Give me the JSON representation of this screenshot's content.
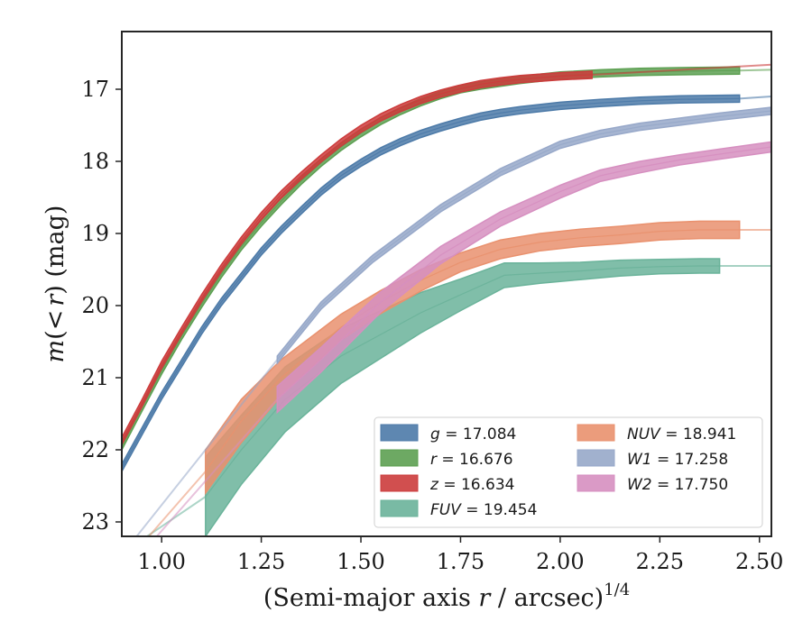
{
  "chart_data": {
    "type": "line",
    "xlabel": "(Semi-major axis r / arcsec)1/4",
    "xlabel_parts": {
      "pre": "(Semi-major axis ",
      "var": "r",
      "mid": " / arcsec)",
      "sup": "1/4"
    },
    "ylabel": "m(< r) (mag)",
    "ylabel_parts": {
      "var": "m",
      "mid": "(<",
      "var2": "r",
      "post": ") (mag)"
    },
    "xlim": [
      0.9,
      2.53
    ],
    "ylim": [
      23.2,
      16.2
    ],
    "y_inverted": true,
    "x_ticks": [
      1.0,
      1.25,
      1.5,
      1.75,
      2.0,
      2.25,
      2.5
    ],
    "x_tick_labels": [
      "1.00",
      "1.25",
      "1.50",
      "1.75",
      "2.00",
      "2.25",
      "2.50"
    ],
    "y_ticks": [
      17,
      18,
      19,
      20,
      21,
      22,
      23
    ],
    "y_tick_labels": [
      "17",
      "18",
      "19",
      "20",
      "21",
      "22",
      "23"
    ],
    "grid": false,
    "legend_position": "lower-right",
    "legend_columns": 2,
    "series": [
      {
        "name": "g = 17.084",
        "legend": {
          "var": "g",
          "value": "17.084"
        },
        "color": "#4c7aa8",
        "x": [
          0.9,
          0.95,
          1.0,
          1.05,
          1.1,
          1.15,
          1.2,
          1.25,
          1.3,
          1.35,
          1.4,
          1.45,
          1.5,
          1.55,
          1.6,
          1.65,
          1.7,
          1.75,
          1.8,
          1.85,
          1.9,
          2.0,
          2.1,
          2.2,
          2.3,
          2.45
        ],
        "y": [
          22.25,
          21.75,
          21.25,
          20.8,
          20.35,
          19.95,
          19.6,
          19.25,
          18.95,
          18.68,
          18.42,
          18.2,
          18.02,
          17.86,
          17.73,
          17.62,
          17.53,
          17.45,
          17.38,
          17.33,
          17.29,
          17.23,
          17.19,
          17.16,
          17.14,
          17.13
        ],
        "band": 0.05,
        "extension": {
          "x": [
            2.45,
            2.53
          ],
          "y": [
            17.13,
            17.1
          ]
        }
      },
      {
        "name": "r = 16.676",
        "legend": {
          "var": "r",
          "value": "16.676"
        },
        "color": "#5da052",
        "x": [
          0.9,
          0.95,
          1.0,
          1.05,
          1.1,
          1.15,
          1.2,
          1.25,
          1.3,
          1.35,
          1.4,
          1.45,
          1.5,
          1.55,
          1.6,
          1.65,
          1.7,
          1.75,
          1.8,
          1.85,
          1.9,
          2.0,
          2.1,
          2.2,
          2.3,
          2.45
        ],
        "y": [
          21.95,
          21.42,
          20.9,
          20.42,
          19.98,
          19.56,
          19.18,
          18.85,
          18.55,
          18.27,
          18.02,
          17.8,
          17.61,
          17.44,
          17.3,
          17.18,
          17.08,
          17.0,
          16.95,
          16.91,
          16.87,
          16.81,
          16.78,
          16.76,
          16.75,
          16.74
        ],
        "band": 0.05,
        "extension": {
          "x": [
            2.45,
            2.53
          ],
          "y": [
            16.74,
            16.73
          ]
        }
      },
      {
        "name": "z = 16.634",
        "legend": {
          "var": "z",
          "value": "16.634"
        },
        "color": "#cc3c3c",
        "x": [
          0.9,
          0.95,
          1.0,
          1.05,
          1.1,
          1.15,
          1.2,
          1.25,
          1.3,
          1.35,
          1.4,
          1.45,
          1.5,
          1.55,
          1.6,
          1.65,
          1.7,
          1.75,
          1.8,
          1.85,
          1.9,
          2.0,
          2.08
        ],
        "y": [
          21.88,
          21.36,
          20.82,
          20.35,
          19.9,
          19.48,
          19.1,
          18.76,
          18.46,
          18.2,
          17.96,
          17.74,
          17.55,
          17.39,
          17.26,
          17.15,
          17.06,
          16.99,
          16.93,
          16.89,
          16.86,
          16.82,
          16.8
        ],
        "band": 0.05,
        "extension": {
          "x": [
            2.08,
            2.53
          ],
          "y": [
            16.8,
            16.66
          ]
        }
      },
      {
        "name": "FUV = 19.454",
        "legend": {
          "var": "FUV",
          "value": "19.454"
        },
        "color": "#6ab39a",
        "x": [
          1.11,
          1.2,
          1.31,
          1.45,
          1.55,
          1.65,
          1.75,
          1.86,
          1.95,
          2.05,
          2.15,
          2.25,
          2.35,
          2.4
        ],
        "y": [
          22.65,
          22.0,
          21.3,
          20.7,
          20.4,
          20.1,
          19.85,
          19.58,
          19.55,
          19.52,
          19.48,
          19.46,
          19.45,
          19.45
        ],
        "band": [
          0.55,
          0.48,
          0.45,
          0.38,
          0.33,
          0.28,
          0.22,
          0.17,
          0.14,
          0.12,
          0.11,
          0.1,
          0.1,
          0.1
        ],
        "extension": {
          "x": [
            2.4,
            2.53
          ],
          "y": [
            19.45,
            19.45
          ]
        },
        "fade_in": {
          "x": [
            0.95,
            1.11
          ],
          "y": [
            23.25,
            22.65
          ]
        }
      },
      {
        "name": "NUV = 18.941",
        "legend": {
          "var": "NUV",
          "value": "18.941"
        },
        "color": "#e9916e",
        "x": [
          1.11,
          1.2,
          1.3,
          1.45,
          1.55,
          1.65,
          1.75,
          1.85,
          1.95,
          2.05,
          2.15,
          2.25,
          2.35,
          2.45
        ],
        "y": [
          22.3,
          21.6,
          21.0,
          20.3,
          19.95,
          19.65,
          19.4,
          19.22,
          19.12,
          19.06,
          19.02,
          18.97,
          18.95,
          18.95
        ],
        "band": [
          0.3,
          0.3,
          0.25,
          0.18,
          0.16,
          0.15,
          0.13,
          0.13,
          0.12,
          0.12,
          0.12,
          0.12,
          0.12,
          0.12
        ],
        "extension": {
          "x": [
            2.45,
            2.53
          ],
          "y": [
            18.95,
            18.95
          ]
        },
        "fade_in": {
          "x": [
            0.96,
            1.11
          ],
          "y": [
            23.25,
            22.3
          ]
        }
      },
      {
        "name": "W1 = 17.258",
        "legend": {
          "var": "W1",
          "value": "17.258"
        },
        "color": "#97a8c9",
        "x": [
          1.29,
          1.4,
          1.53,
          1.7,
          1.85,
          2.0,
          2.1,
          2.2,
          2.3,
          2.4,
          2.53
        ],
        "y": [
          20.75,
          20.0,
          19.35,
          18.65,
          18.15,
          17.77,
          17.62,
          17.52,
          17.45,
          17.38,
          17.3
        ],
        "band": 0.05,
        "fade_in": {
          "x": [
            0.93,
            1.29
          ],
          "y": [
            23.25,
            20.75
          ]
        }
      },
      {
        "name": "W2 = 17.750",
        "legend": {
          "var": "W2",
          "value": "17.750"
        },
        "color": "#d68fc0",
        "x": [
          1.29,
          1.4,
          1.55,
          1.7,
          1.85,
          2.0,
          2.1,
          2.2,
          2.3,
          2.4,
          2.53
        ],
        "y": [
          21.3,
          20.75,
          19.95,
          19.3,
          18.8,
          18.42,
          18.2,
          18.08,
          17.98,
          17.9,
          17.8
        ],
        "band": [
          0.18,
          0.17,
          0.14,
          0.12,
          0.1,
          0.09,
          0.08,
          0.08,
          0.07,
          0.07,
          0.07
        ],
        "fade_in": {
          "x": [
            0.98,
            1.29
          ],
          "y": [
            23.25,
            21.3
          ]
        }
      }
    ]
  }
}
